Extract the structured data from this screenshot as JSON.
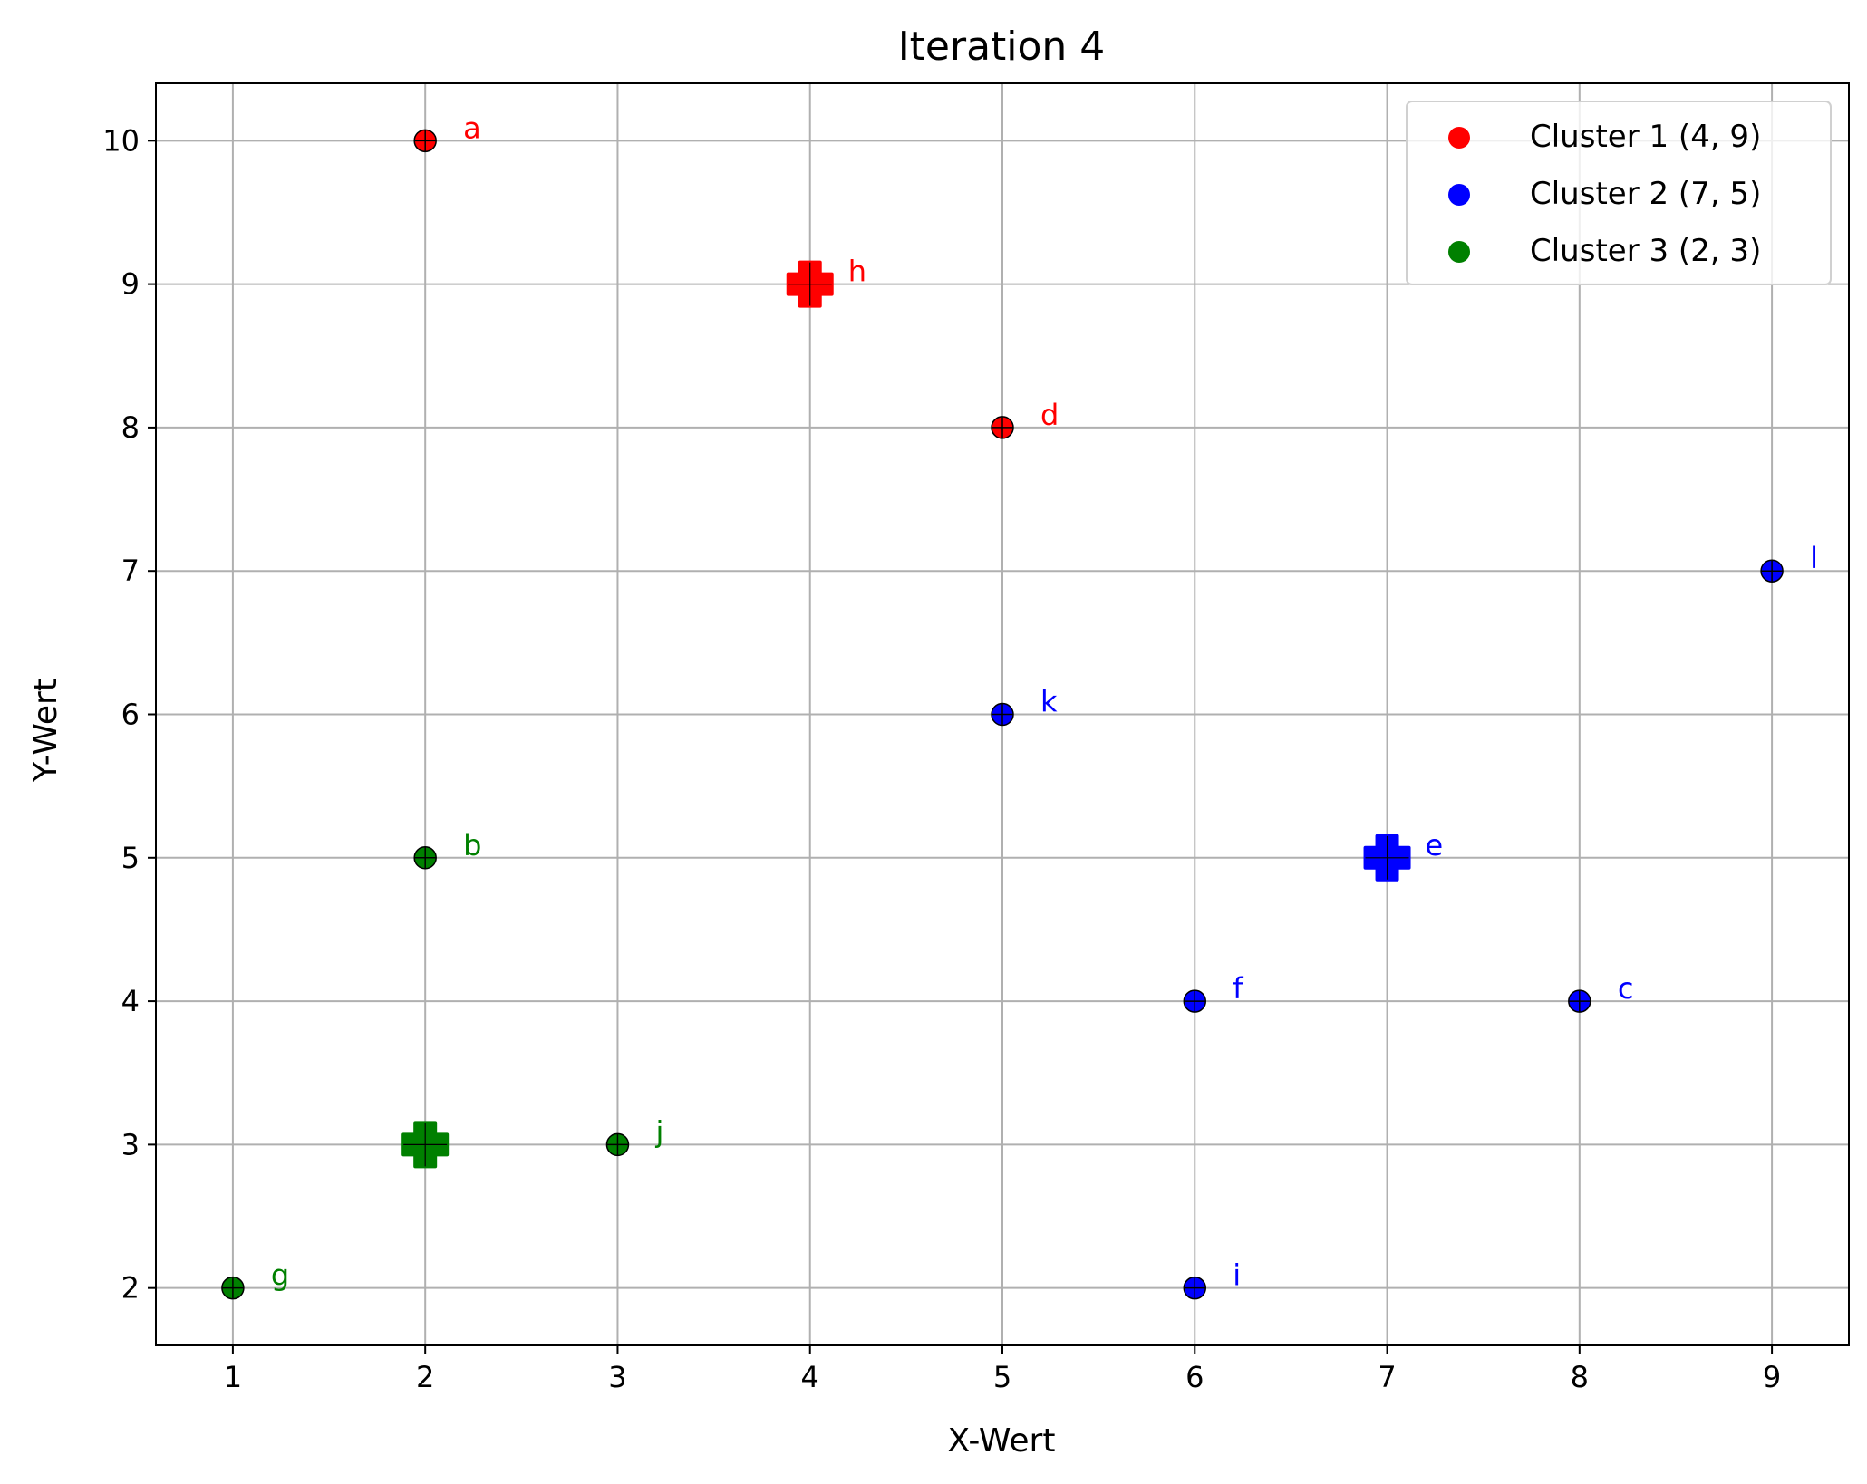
{
  "chart_data": {
    "type": "scatter",
    "title": "Iteration 4",
    "xlabel": "X-Wert",
    "ylabel": "Y-Wert",
    "xlim": [
      0.6,
      9.4
    ],
    "ylim": [
      1.6,
      10.4
    ],
    "xticks": [
      1,
      2,
      3,
      4,
      5,
      6,
      7,
      8,
      9
    ],
    "yticks": [
      2,
      3,
      4,
      5,
      6,
      7,
      8,
      9,
      10
    ],
    "grid": true,
    "legend_position": "top-right",
    "series": [
      {
        "name": "Cluster 1 (4, 9)",
        "color": "#ff0000",
        "points": [
          {
            "label": "a",
            "x": 2,
            "y": 10
          },
          {
            "label": "d",
            "x": 5,
            "y": 8
          }
        ],
        "centroid": {
          "label": "h",
          "x": 4,
          "y": 9
        }
      },
      {
        "name": "Cluster 2 (7, 5)",
        "color": "#0000ff",
        "points": [
          {
            "label": "k",
            "x": 5,
            "y": 6
          },
          {
            "label": "l",
            "x": 9,
            "y": 7
          },
          {
            "label": "f",
            "x": 6,
            "y": 4
          },
          {
            "label": "c",
            "x": 8,
            "y": 4
          },
          {
            "label": "i",
            "x": 6,
            "y": 2
          }
        ],
        "centroid": {
          "label": "e",
          "x": 7,
          "y": 5
        }
      },
      {
        "name": "Cluster 3 (2, 3)",
        "color": "#008000",
        "points": [
          {
            "label": "b",
            "x": 2,
            "y": 5
          },
          {
            "label": "j",
            "x": 3,
            "y": 3
          },
          {
            "label": "g",
            "x": 1,
            "y": 2
          }
        ],
        "centroid": {
          "label": "",
          "x": 2,
          "y": 3
        }
      }
    ]
  }
}
